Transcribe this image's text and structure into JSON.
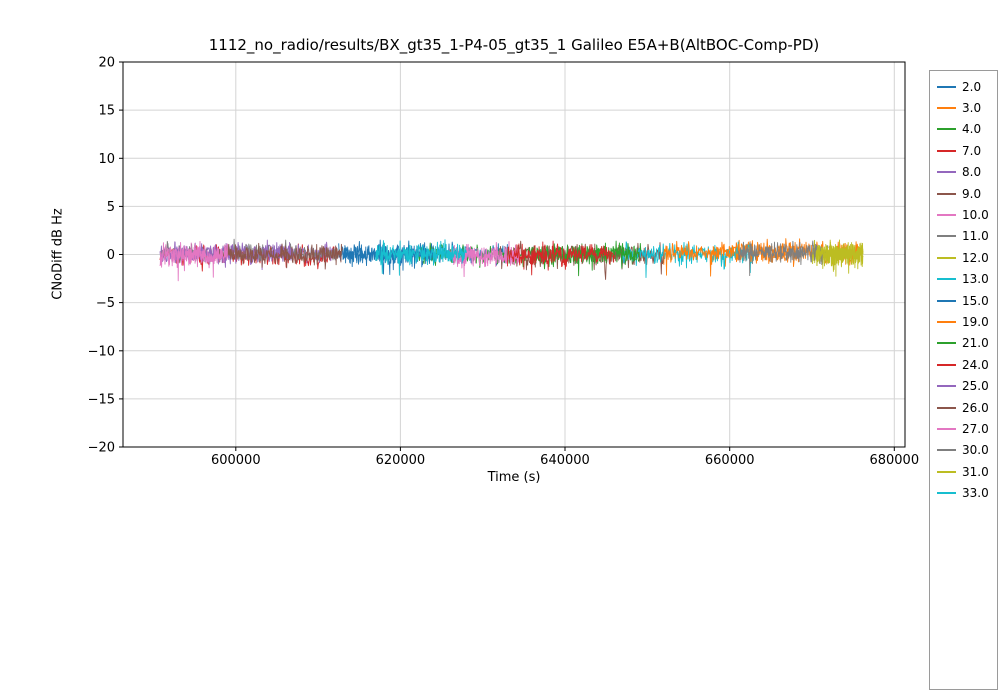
{
  "figure": {
    "title": "1112_no_radio/results/BX_gt35_1-P4-05_gt35_1 Galileo E5A+B(AltBOC-Comp-PD)",
    "xlabel": "Time (s)",
    "ylabel": "CNoDiff dB Hz"
  },
  "chart_data": {
    "type": "line",
    "title": "1112_no_radio/results/BX_gt35_1-P4-05_gt35_1 Galileo E5A+B(AltBOC-Comp-PD)",
    "xlabel": "Time (s)",
    "ylabel": "CNoDiff dB Hz",
    "xlim": [
      586300,
      681300
    ],
    "ylim": [
      -20,
      20
    ],
    "xticks": [
      600000,
      620000,
      640000,
      660000,
      680000
    ],
    "yticks": [
      -20,
      -15,
      -10,
      -5,
      0,
      5,
      10,
      15,
      20
    ],
    "grid": true,
    "legend_position": "outside-right",
    "legend_truncated_at_bottom": true,
    "visible_time_range": [
      590800,
      676200
    ],
    "note": "All series are CNo-difference noise bands of roughly ±1 dB centered near 0 dB-Hz over their visible time spans; per-sample values estimated from plot.",
    "series": [
      {
        "name": "2.0",
        "color": "#1f77b4",
        "t_start": 612500,
        "t_end": 633000,
        "mean": 0.1,
        "amp": 0.55
      },
      {
        "name": "3.0",
        "color": "#ff7f0e",
        "t_start": 658000,
        "t_end": 676200,
        "mean": 0.2,
        "amp": 0.6
      },
      {
        "name": "4.0",
        "color": "#2ca02c",
        "t_start": 622000,
        "t_end": 650000,
        "mean": 0.05,
        "amp": 0.55
      },
      {
        "name": "7.0",
        "color": "#d62728",
        "t_start": 590800,
        "t_end": 612000,
        "mean": -0.1,
        "amp": 0.6
      },
      {
        "name": "8.0",
        "color": "#9467bd",
        "t_start": 590800,
        "t_end": 613000,
        "mean": 0.15,
        "amp": 0.55
      },
      {
        "name": "9.0",
        "color": "#8c564b",
        "t_start": 632000,
        "t_end": 652000,
        "mean": -0.05,
        "amp": 0.6
      },
      {
        "name": "10.0",
        "color": "#e377c2",
        "t_start": 626000,
        "t_end": 634500,
        "mean": -0.15,
        "amp": 0.6
      },
      {
        "name": "11.0",
        "color": "#7f7f7f",
        "t_start": 591000,
        "t_end": 613000,
        "mean": 0.2,
        "amp": 0.5
      },
      {
        "name": "12.0",
        "color": "#bcbd22",
        "t_start": 670000,
        "t_end": 676200,
        "mean": 0.0,
        "amp": 0.6
      },
      {
        "name": "13.0",
        "color": "#17becf",
        "t_start": 647000,
        "t_end": 663000,
        "mean": 0.1,
        "amp": 0.55
      },
      {
        "name": "15.0",
        "color": "#1f77b4",
        "t_start": 613000,
        "t_end": 624000,
        "mean": 0.0,
        "amp": 0.55
      },
      {
        "name": "19.0",
        "color": "#ff7f0e",
        "t_start": 652000,
        "t_end": 669000,
        "mean": 0.25,
        "amp": 0.55
      },
      {
        "name": "21.0",
        "color": "#2ca02c",
        "t_start": 636000,
        "t_end": 649000,
        "mean": 0.05,
        "amp": 0.55
      },
      {
        "name": "24.0",
        "color": "#d62728",
        "t_start": 633000,
        "t_end": 646000,
        "mean": -0.1,
        "amp": 0.6
      },
      {
        "name": "25.0",
        "color": "#9467bd",
        "t_start": 592000,
        "t_end": 607000,
        "mean": 0.1,
        "amp": 0.5
      },
      {
        "name": "26.0",
        "color": "#8c564b",
        "t_start": 598000,
        "t_end": 613000,
        "mean": 0.0,
        "amp": 0.55
      },
      {
        "name": "27.0",
        "color": "#e377c2",
        "t_start": 590800,
        "t_end": 599000,
        "mean": -0.05,
        "amp": 0.6
      },
      {
        "name": "30.0",
        "color": "#7f7f7f",
        "t_start": 661000,
        "t_end": 672000,
        "mean": 0.15,
        "amp": 0.55
      },
      {
        "name": "31.0",
        "color": "#bcbd22",
        "t_start": 670500,
        "t_end": 676200,
        "mean": 0.05,
        "amp": 0.6
      },
      {
        "name": "33.0",
        "color": "#17becf",
        "t_start": 617000,
        "t_end": 628000,
        "mean": 0.05,
        "amp": 0.55
      }
    ]
  }
}
